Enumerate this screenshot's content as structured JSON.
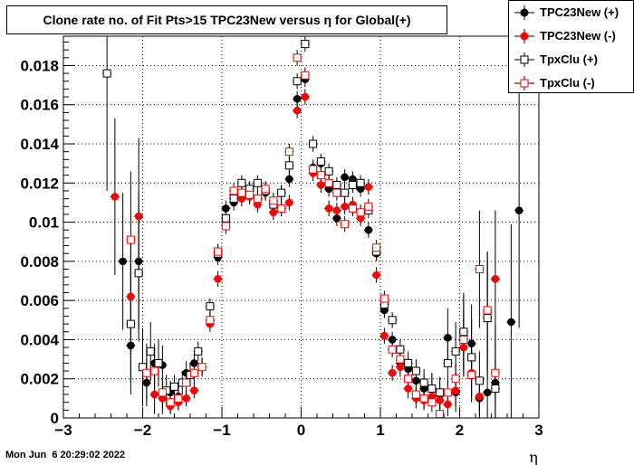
{
  "window": {
    "timestamp": "Mon Jun  6 20:29:02 2022"
  },
  "chart_data": {
    "type": "scatter",
    "title": "Clone rate no. of Fit Pts>15 TPC23New versus η for Global(+)",
    "xlabel": "η",
    "ylabel": "",
    "xlim": [
      -3,
      3
    ],
    "ylim": [
      0,
      0.0195
    ],
    "x_ticks": [
      "−3",
      "−2",
      "−1",
      "0",
      "1",
      "2",
      "3"
    ],
    "y_ticks": [
      "0",
      "0.002",
      "0.004",
      "0.006",
      "0.008",
      "0.01",
      "0.012",
      "0.014",
      "0.016",
      "0.018"
    ],
    "grid": true,
    "legend_position": "top-right",
    "series": [
      {
        "name": "TPC23New (+)",
        "color": "#000000",
        "marker": "filled-circle",
        "points": [
          [
            -2.25,
            0.008,
            0.0035
          ],
          [
            -2.15,
            0.0037,
            0.0025
          ],
          [
            -2.05,
            0.008,
            0.0035
          ],
          [
            -1.95,
            0.0018,
            0.0012
          ],
          [
            -1.85,
            0.0028,
            0.001
          ],
          [
            -1.75,
            0.0027,
            0.001
          ],
          [
            -1.65,
            0.0013,
            0.0006
          ],
          [
            -1.55,
            0.0011,
            0.0005
          ],
          [
            -1.45,
            0.0023,
            0.0006
          ],
          [
            -1.35,
            0.0028,
            0.0005
          ],
          [
            -1.25,
            0.0026,
            0.0004
          ],
          [
            -1.15,
            0.005,
            0.0004
          ],
          [
            -1.05,
            0.0082,
            0.0004
          ],
          [
            -0.95,
            0.0107,
            0.0004
          ],
          [
            -0.85,
            0.011,
            0.0004
          ],
          [
            -0.75,
            0.0115,
            0.0004
          ],
          [
            -0.65,
            0.0116,
            0.0004
          ],
          [
            -0.55,
            0.0112,
            0.0004
          ],
          [
            -0.45,
            0.0115,
            0.0004
          ],
          [
            -0.35,
            0.011,
            0.0004
          ],
          [
            -0.25,
            0.0115,
            0.0004
          ],
          [
            -0.15,
            0.0122,
            0.0004
          ],
          [
            -0.05,
            0.0163,
            0.0004
          ],
          [
            0.05,
            0.0173,
            0.0004
          ],
          [
            0.15,
            0.0128,
            0.0004
          ],
          [
            0.25,
            0.013,
            0.0004
          ],
          [
            0.35,
            0.0117,
            0.0004
          ],
          [
            0.45,
            0.0102,
            0.0004
          ],
          [
            0.55,
            0.0123,
            0.0004
          ],
          [
            0.65,
            0.0122,
            0.0004
          ],
          [
            0.75,
            0.0117,
            0.0004
          ],
          [
            0.85,
            0.0096,
            0.0004
          ],
          [
            0.95,
            0.0084,
            0.0004
          ],
          [
            1.05,
            0.0055,
            0.0004
          ],
          [
            1.15,
            0.004,
            0.0004
          ],
          [
            1.25,
            0.0028,
            0.0005
          ],
          [
            1.35,
            0.0025,
            0.0006
          ],
          [
            1.45,
            0.0019,
            0.0006
          ],
          [
            1.55,
            0.0015,
            0.0007
          ],
          [
            1.65,
            0.0015,
            0.0008
          ],
          [
            1.75,
            0.0012,
            0.0008
          ],
          [
            1.85,
            0.0041,
            0.0015
          ],
          [
            1.95,
            0.0013,
            0.001
          ],
          [
            2.05,
            0.0042,
            0.002
          ],
          [
            2.15,
            0.0038,
            0.002
          ],
          [
            2.25,
            0.001,
            0.001
          ],
          [
            2.35,
            0.0013,
            0.003
          ],
          [
            2.45,
            0.0018,
            0.003
          ],
          [
            2.65,
            0.0049,
            0.005
          ],
          [
            2.75,
            0.0106,
            0.006
          ]
        ]
      },
      {
        "name": "TPC23New (-)",
        "color": "#ff0000",
        "marker": "filled-circle",
        "points": [
          [
            -2.35,
            0.0113,
            0.004
          ],
          [
            -2.15,
            0.0062,
            0.003
          ],
          [
            -2.05,
            0.0103,
            0.004
          ],
          [
            -1.85,
            0.0012,
            0.001
          ],
          [
            -1.75,
            0.001,
            0.0008
          ],
          [
            -1.65,
            0.0006,
            0.0004
          ],
          [
            -1.55,
            0.0008,
            0.0004
          ],
          [
            -1.45,
            0.001,
            0.0004
          ],
          [
            -1.35,
            0.0014,
            0.0004
          ],
          [
            -1.25,
            0.0026,
            0.0004
          ],
          [
            -1.15,
            0.0048,
            0.0004
          ],
          [
            -1.05,
            0.0071,
            0.0004
          ],
          [
            -0.95,
            0.01,
            0.0004
          ],
          [
            -0.85,
            0.0114,
            0.0004
          ],
          [
            -0.75,
            0.0112,
            0.0004
          ],
          [
            -0.65,
            0.0113,
            0.0004
          ],
          [
            -0.55,
            0.0109,
            0.0004
          ],
          [
            -0.45,
            0.0116,
            0.0004
          ],
          [
            -0.35,
            0.0105,
            0.0004
          ],
          [
            -0.25,
            0.0107,
            0.0004
          ],
          [
            -0.15,
            0.011,
            0.0004
          ],
          [
            -0.05,
            0.0157,
            0.0004
          ],
          [
            0.05,
            0.0164,
            0.0004
          ],
          [
            0.15,
            0.0125,
            0.0004
          ],
          [
            0.25,
            0.0119,
            0.0004
          ],
          [
            0.35,
            0.0107,
            0.0004
          ],
          [
            0.45,
            0.0106,
            0.0004
          ],
          [
            0.55,
            0.0108,
            0.0004
          ],
          [
            0.65,
            0.0109,
            0.0004
          ],
          [
            0.75,
            0.0102,
            0.0004
          ],
          [
            0.85,
            0.0118,
            0.0004
          ],
          [
            0.95,
            0.0073,
            0.0004
          ],
          [
            1.05,
            0.0042,
            0.0004
          ],
          [
            1.15,
            0.0023,
            0.0004
          ],
          [
            1.25,
            0.0026,
            0.0005
          ],
          [
            1.35,
            0.0015,
            0.0005
          ],
          [
            1.45,
            0.001,
            0.0005
          ],
          [
            1.55,
            0.0009,
            0.0005
          ],
          [
            1.65,
            0.0011,
            0.0005
          ],
          [
            1.75,
            0.0009,
            0.0005
          ],
          [
            1.85,
            0.0007,
            0.0006
          ],
          [
            1.95,
            0.0014,
            0.0008
          ],
          [
            2.05,
            0.0036,
            0.0015
          ],
          [
            2.15,
            0.0023,
            0.0015
          ],
          [
            2.25,
            0.0011,
            0.001
          ],
          [
            2.35,
            0.0054,
            0.003
          ],
          [
            2.45,
            0.0071,
            0.0035
          ]
        ]
      },
      {
        "name": "TpxClu (+)",
        "color": "#000000",
        "marker": "open-square",
        "points": [
          [
            -2.45,
            0.0176,
            0.006
          ],
          [
            -2.15,
            0.0048,
            0.003
          ],
          [
            -2.05,
            0.0074,
            0.0035
          ],
          [
            -2.0,
            0.0026,
            0.002
          ],
          [
            -1.9,
            0.0034,
            0.0015
          ],
          [
            -1.8,
            0.0028,
            0.0012
          ],
          [
            -1.7,
            0.0014,
            0.0008
          ],
          [
            -1.6,
            0.0016,
            0.0006
          ],
          [
            -1.5,
            0.0018,
            0.0006
          ],
          [
            -1.4,
            0.0022,
            0.0006
          ],
          [
            -1.3,
            0.0034,
            0.0005
          ],
          [
            -1.15,
            0.0057,
            0.0004
          ],
          [
            -1.05,
            0.0084,
            0.0004
          ],
          [
            -0.95,
            0.0102,
            0.0004
          ],
          [
            -0.85,
            0.0112,
            0.0004
          ],
          [
            -0.75,
            0.012,
            0.0004
          ],
          [
            -0.65,
            0.0117,
            0.0004
          ],
          [
            -0.55,
            0.012,
            0.0004
          ],
          [
            -0.45,
            0.0116,
            0.0004
          ],
          [
            -0.35,
            0.0109,
            0.0004
          ],
          [
            -0.25,
            0.0115,
            0.0004
          ],
          [
            -0.15,
            0.0129,
            0.0004
          ],
          [
            -0.05,
            0.0172,
            0.0004
          ],
          [
            0.05,
            0.0191,
            0.0004
          ],
          [
            0.15,
            0.014,
            0.0004
          ],
          [
            0.25,
            0.0131,
            0.0004
          ],
          [
            0.35,
            0.0126,
            0.0004
          ],
          [
            0.45,
            0.0119,
            0.0004
          ],
          [
            0.55,
            0.0115,
            0.0004
          ],
          [
            0.65,
            0.0119,
            0.0004
          ],
          [
            0.75,
            0.012,
            0.0004
          ],
          [
            0.85,
            0.0106,
            0.0004
          ],
          [
            0.95,
            0.0085,
            0.0004
          ],
          [
            1.05,
            0.0058,
            0.0004
          ],
          [
            1.15,
            0.005,
            0.0004
          ],
          [
            1.25,
            0.0035,
            0.0005
          ],
          [
            1.35,
            0.0028,
            0.0006
          ],
          [
            1.45,
            0.0024,
            0.0006
          ],
          [
            1.55,
            0.0018,
            0.0007
          ],
          [
            1.65,
            0.0015,
            0.0008
          ],
          [
            1.75,
            0.0013,
            0.0008
          ],
          [
            1.85,
            0.0028,
            0.0012
          ],
          [
            1.95,
            0.0034,
            0.0015
          ],
          [
            2.05,
            0.0044,
            0.002
          ],
          [
            2.15,
            0.0031,
            0.002
          ],
          [
            2.25,
            0.0019,
            0.0015
          ],
          [
            2.35,
            0.0051,
            0.003
          ],
          [
            2.45,
            0.0015,
            0.0015
          ]
        ]
      },
      {
        "name": "TpxClu (-)",
        "color": "#ff0000",
        "marker": "open-square",
        "points": [
          [
            -2.15,
            0.0091,
            0.0035
          ],
          [
            -1.95,
            0.0023,
            0.0015
          ],
          [
            -1.85,
            0.0024,
            0.0012
          ],
          [
            -1.75,
            0.0013,
            0.0008
          ],
          [
            -1.65,
            0.0008,
            0.0006
          ],
          [
            -1.55,
            0.001,
            0.0006
          ],
          [
            -1.45,
            0.0018,
            0.0006
          ],
          [
            -1.35,
            0.0023,
            0.0005
          ],
          [
            -1.25,
            0.0026,
            0.0005
          ],
          [
            -1.15,
            0.005,
            0.0004
          ],
          [
            -1.05,
            0.0085,
            0.0004
          ],
          [
            -0.95,
            0.0098,
            0.0004
          ],
          [
            -0.85,
            0.0116,
            0.0004
          ],
          [
            -0.75,
            0.0115,
            0.0004
          ],
          [
            -0.65,
            0.0114,
            0.0004
          ],
          [
            -0.55,
            0.0112,
            0.0004
          ],
          [
            -0.45,
            0.0117,
            0.0004
          ],
          [
            -0.35,
            0.0111,
            0.0004
          ],
          [
            -0.25,
            0.0107,
            0.0004
          ],
          [
            -0.15,
            0.0136,
            0.0004
          ],
          [
            -0.05,
            0.0184,
            0.0004
          ],
          [
            0.05,
            0.0175,
            0.0004
          ],
          [
            0.15,
            0.0127,
            0.0004
          ],
          [
            0.25,
            0.0124,
            0.0004
          ],
          [
            0.35,
            0.012,
            0.0004
          ],
          [
            0.45,
            0.0115,
            0.0004
          ],
          [
            0.55,
            0.0099,
            0.0004
          ],
          [
            0.65,
            0.0107,
            0.0004
          ],
          [
            0.75,
            0.0105,
            0.0004
          ],
          [
            0.85,
            0.0108,
            0.0004
          ],
          [
            0.95,
            0.0087,
            0.0004
          ],
          [
            1.05,
            0.0061,
            0.0004
          ],
          [
            1.15,
            0.0035,
            0.0004
          ],
          [
            1.25,
            0.003,
            0.0005
          ],
          [
            1.35,
            0.002,
            0.0005
          ],
          [
            1.45,
            0.0012,
            0.0005
          ],
          [
            1.55,
            0.001,
            0.0005
          ],
          [
            1.65,
            0.0008,
            0.0005
          ],
          [
            1.75,
            0.0002,
            0.0005
          ],
          [
            1.85,
            0.0013,
            0.0006
          ],
          [
            1.95,
            0.002,
            0.0008
          ],
          [
            2.05,
            0.004,
            0.0015
          ],
          [
            2.15,
            0.0022,
            0.0012
          ],
          [
            2.25,
            0.0076,
            0.003
          ],
          [
            2.35,
            0.0055,
            0.003
          ],
          [
            2.45,
            0.0023,
            0.0015
          ]
        ]
      }
    ]
  }
}
